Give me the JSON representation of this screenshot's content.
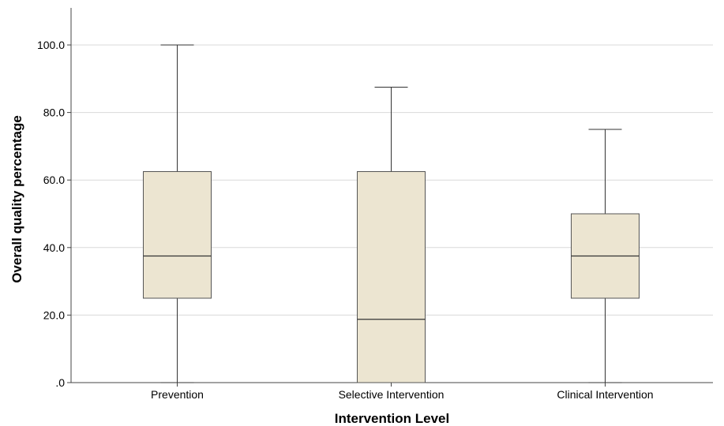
{
  "chart_data": {
    "type": "boxplot",
    "xlabel": "Intervention Level",
    "ylabel": "Overall quality percentage",
    "ylim": [
      0,
      112
    ],
    "yticks": [
      0,
      20,
      40,
      60,
      80,
      100
    ],
    "ytick_labels": [
      ".0",
      "20.0",
      "40.0",
      "60.0",
      "80.0",
      "100.0"
    ],
    "grid": "horizontal",
    "box_fill": "#ece5d1",
    "box_stroke": "#555555",
    "categories": [
      "Prevention",
      "Selective Intervention",
      "Clinical Intervention"
    ],
    "boxes": [
      {
        "category": "Prevention",
        "min": 0,
        "q1": 25,
        "median": 37.5,
        "q3": 62.5,
        "max": 100
      },
      {
        "category": "Selective Intervention",
        "min": 0,
        "q1": 0,
        "median": 18.75,
        "q3": 62.5,
        "max": 87.5
      },
      {
        "category": "Clinical Intervention",
        "min": 0,
        "q1": 25,
        "median": 37.5,
        "q3": 50,
        "max": 75
      }
    ]
  }
}
